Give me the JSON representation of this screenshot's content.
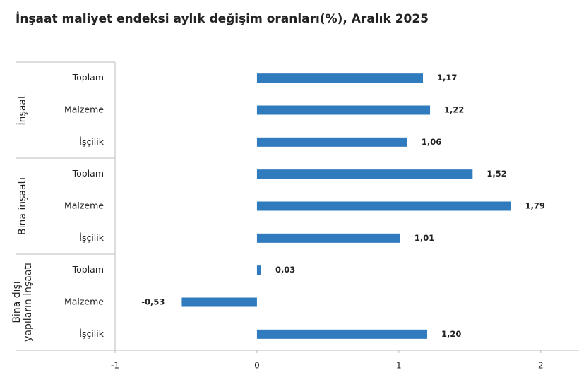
{
  "chart_data": {
    "type": "bar",
    "orientation": "horizontal",
    "title": "İnşaat maliyet endeksi aylık değişim oranları(%), Aralık 2025",
    "color": "#2f7bbd",
    "groups": [
      {
        "label": [
          "İnşaat"
        ],
        "categories": [
          "Toplam",
          "Malzeme",
          "İşçilik"
        ],
        "values": [
          1.17,
          1.22,
          1.06
        ],
        "value_labels": [
          "1,17",
          "1,22",
          "1,06"
        ]
      },
      {
        "label": [
          "Bina inşaatı"
        ],
        "categories": [
          "Toplam",
          "Malzeme",
          "İşçilik"
        ],
        "values": [
          1.52,
          1.79,
          1.01
        ],
        "value_labels": [
          "1,52",
          "1,79",
          "1,01"
        ]
      },
      {
        "label": [
          "Bina dışı",
          "yapıların inşaatı"
        ],
        "categories": [
          "Toplam",
          "Malzeme",
          "İşçilik"
        ],
        "values": [
          0.03,
          -0.53,
          1.2
        ],
        "value_labels": [
          "0,03",
          "-0,53",
          "1,20"
        ]
      }
    ],
    "xlim": [
      -1,
      2.25
    ],
    "xticks": [
      -1,
      0,
      1,
      2
    ]
  }
}
